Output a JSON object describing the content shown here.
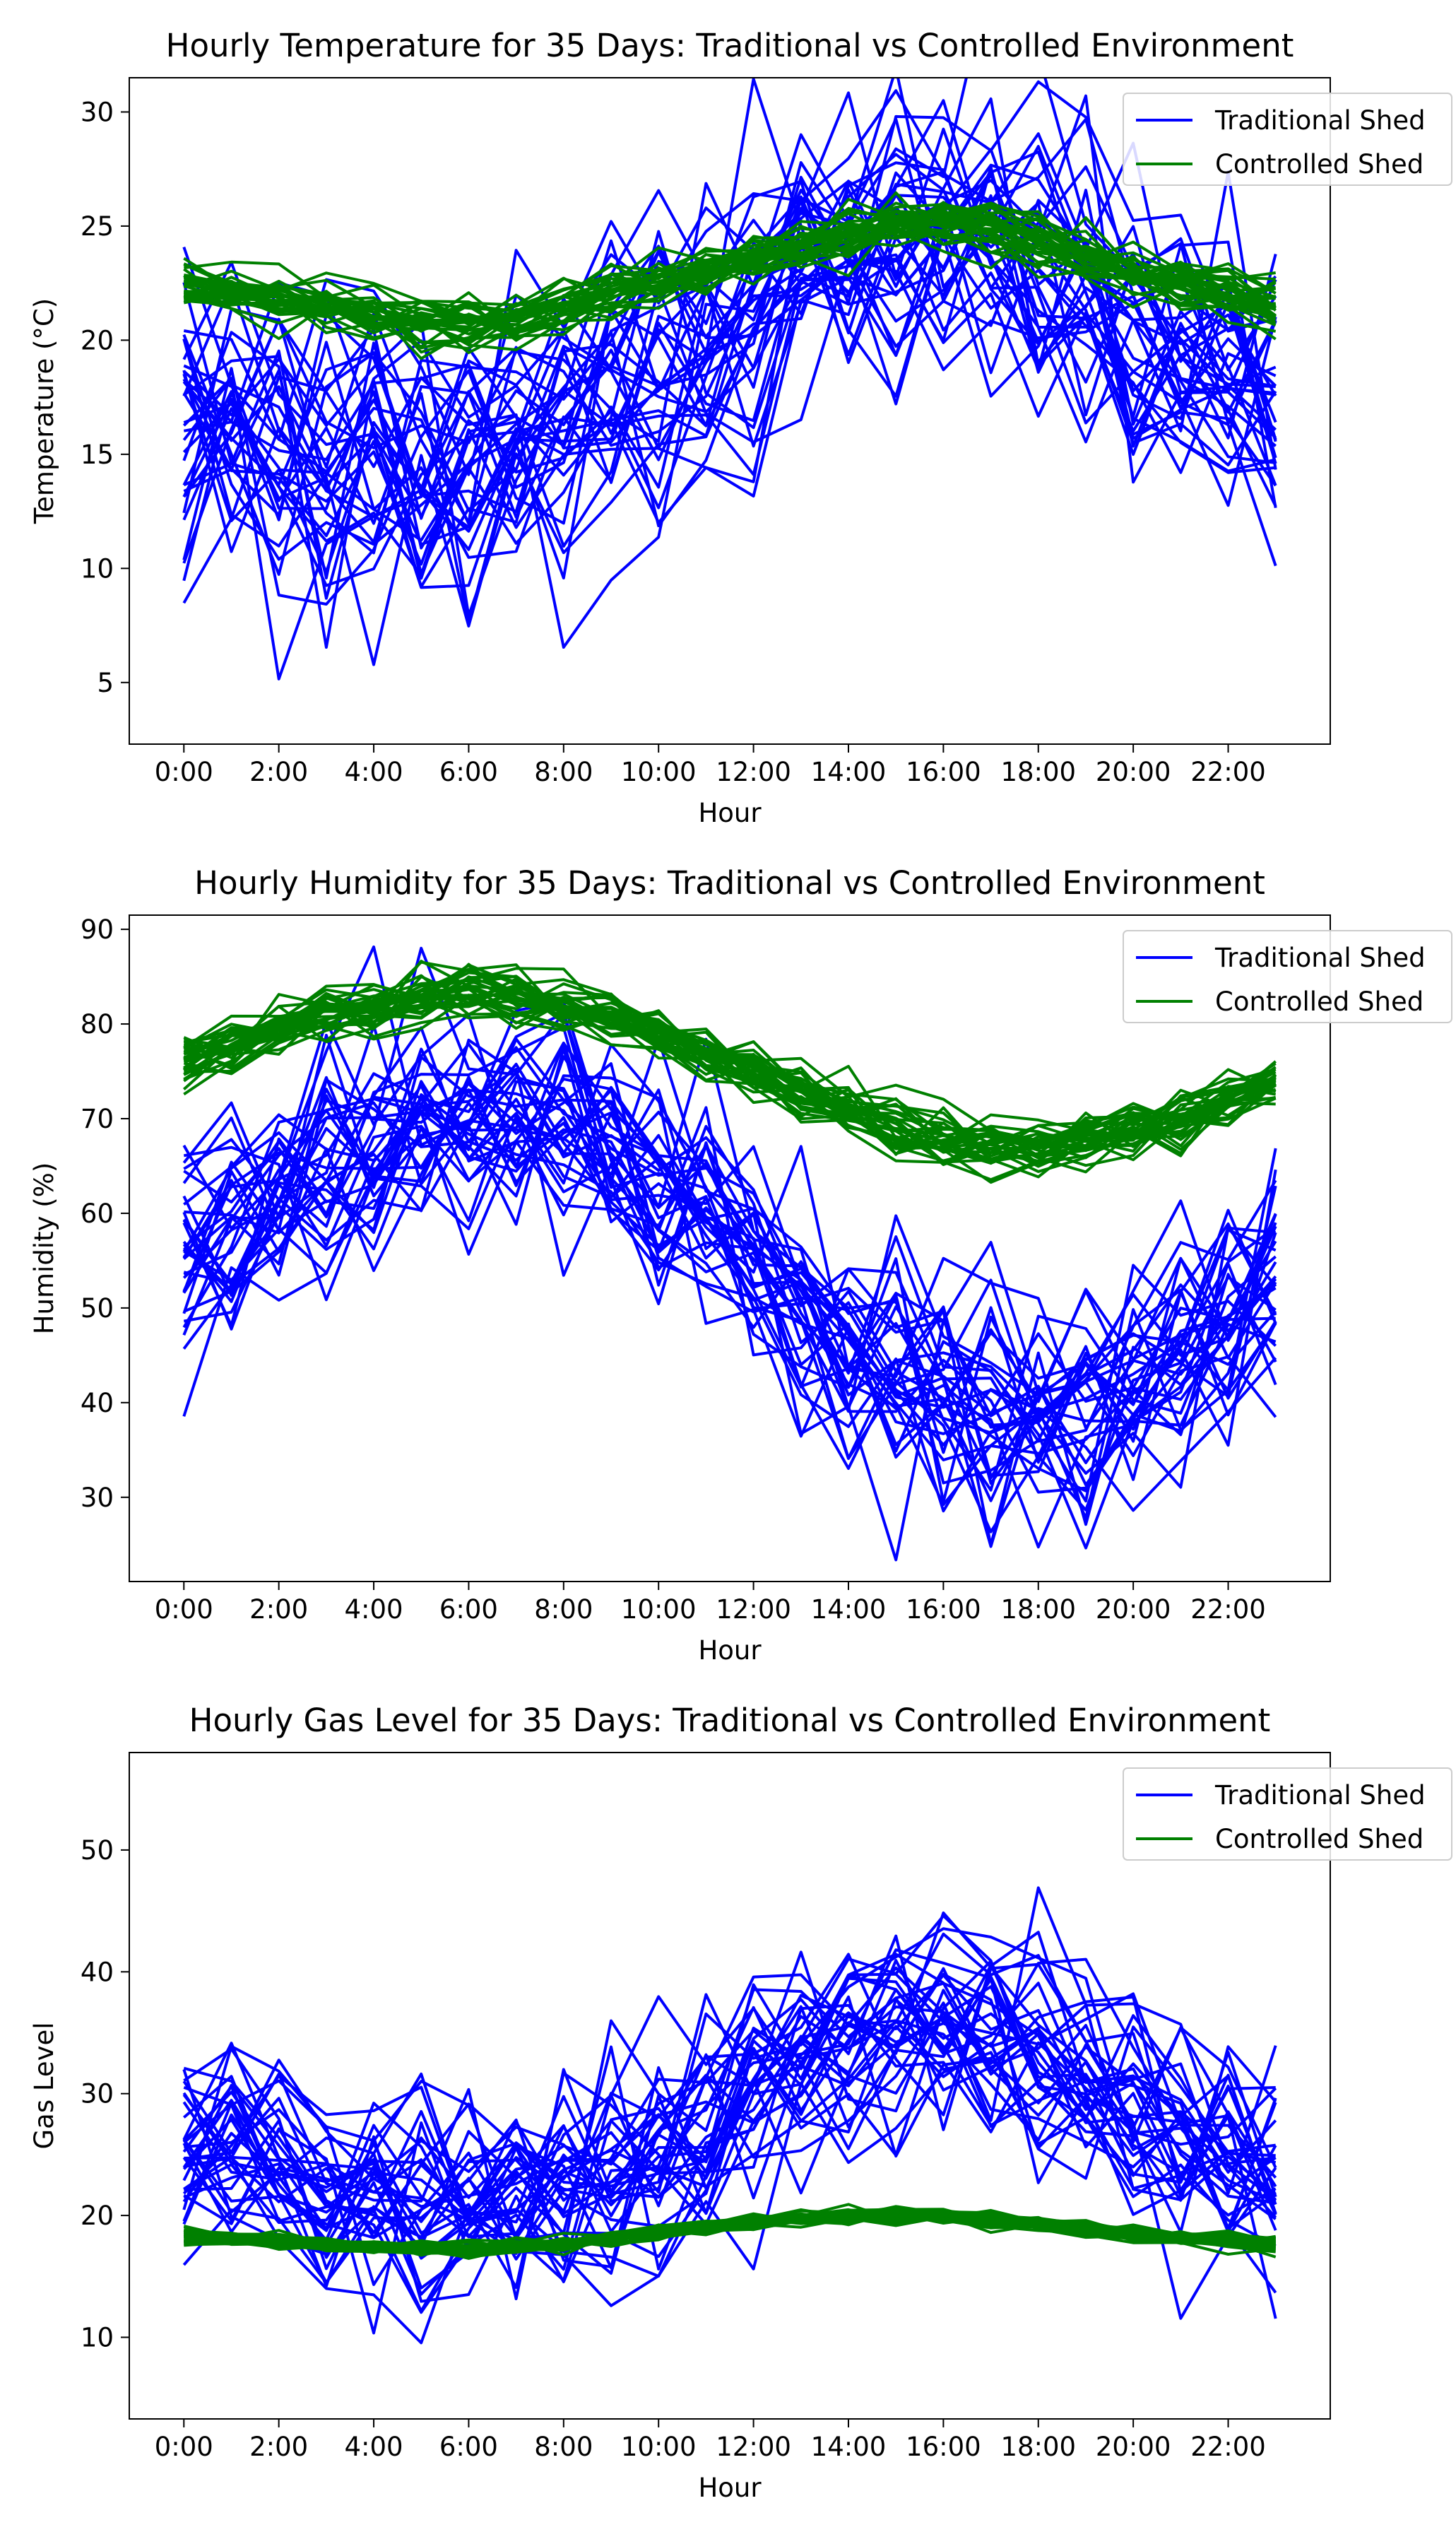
{
  "colors": {
    "traditional": "#0000ff",
    "controlled": "#008000"
  },
  "chart_data": [
    {
      "type": "line",
      "title": "Hourly Temperature for 35 Days: Traditional vs Controlled Environment",
      "xlabel": "Hour",
      "ylabel": "Temperature (°C)",
      "xlim": [
        -1.15,
        24.15
      ],
      "ylim": [
        2.3,
        31.5
      ],
      "xtick_labels": [
        "0:00",
        "2:00",
        "4:00",
        "6:00",
        "8:00",
        "10:00",
        "12:00",
        "14:00",
        "16:00",
        "18:00",
        "20:00",
        "22:00"
      ],
      "yticks": [
        5,
        10,
        15,
        20,
        25,
        30
      ],
      "legend": {
        "placement": "top-right",
        "entries": [
          "Traditional Shed",
          "Controlled Shed"
        ]
      },
      "x": [
        0,
        1,
        2,
        3,
        4,
        5,
        6,
        7,
        8,
        9,
        10,
        11,
        12,
        13,
        14,
        15,
        16,
        17,
        18,
        19,
        20,
        21,
        22,
        23
      ],
      "days": 35,
      "series": [
        {
          "name": "Traditional Shed",
          "color": "#0000ff",
          "mean": [
            16.2,
            15.8,
            15.4,
            15.0,
            14.7,
            14.6,
            14.8,
            15.3,
            16.2,
            17.4,
            18.8,
            20.3,
            21.8,
            23.0,
            23.9,
            24.4,
            24.5,
            24.0,
            23.1,
            21.8,
            20.2,
            18.6,
            17.3,
            16.5
          ],
          "spread": 3.6
        },
        {
          "name": "Controlled Shed",
          "color": "#008000",
          "mean": [
            22.5,
            22.3,
            22.0,
            21.6,
            21.2,
            20.9,
            20.8,
            21.0,
            21.5,
            22.0,
            22.6,
            23.1,
            23.6,
            24.1,
            24.7,
            25.1,
            25.3,
            25.0,
            24.4,
            23.8,
            23.1,
            22.5,
            22.0,
            21.7
          ],
          "spread": 0.6
        }
      ]
    },
    {
      "type": "line",
      "title": "Hourly Humidity for 35 Days: Traditional vs Controlled Environment",
      "xlabel": "Hour",
      "ylabel": "Humidity (%)",
      "xlim": [
        -1.15,
        24.15
      ],
      "ylim": [
        21.1,
        91.5
      ],
      "xtick_labels": [
        "0:00",
        "2:00",
        "4:00",
        "6:00",
        "8:00",
        "10:00",
        "12:00",
        "14:00",
        "16:00",
        "18:00",
        "20:00",
        "22:00"
      ],
      "yticks": [
        30,
        40,
        50,
        60,
        70,
        80,
        90
      ],
      "legend": {
        "placement": "top-right",
        "entries": [
          "Traditional Shed",
          "Controlled Shed"
        ]
      },
      "x": [
        0,
        1,
        2,
        3,
        4,
        5,
        6,
        7,
        8,
        9,
        10,
        11,
        12,
        13,
        14,
        15,
        16,
        17,
        18,
        19,
        20,
        21,
        22,
        23
      ],
      "days": 35,
      "series": [
        {
          "name": "Traditional Shed",
          "color": "#0000ff",
          "mean": [
            56,
            57,
            62,
            66,
            68,
            70,
            71,
            71,
            70,
            67,
            63,
            59,
            55,
            50,
            46,
            43,
            41,
            40,
            39,
            40,
            42,
            45,
            49,
            52
          ],
          "spread": 7
        },
        {
          "name": "Controlled Shed",
          "color": "#008000",
          "mean": [
            76,
            78,
            80,
            81,
            82,
            83,
            84,
            83,
            82,
            81,
            79,
            77,
            75,
            73,
            71,
            69,
            68,
            67,
            67,
            68,
            69,
            70,
            72,
            74
          ],
          "spread": 1.6
        }
      ]
    },
    {
      "type": "line",
      "title": "Hourly Gas Level for 35 Days: Traditional vs Controlled Environment",
      "xlabel": "Hour",
      "ylabel": "Gas Level",
      "xlim": [
        -1.15,
        24.15
      ],
      "ylim": [
        3.3,
        58.0
      ],
      "xtick_labels": [
        "0:00",
        "2:00",
        "4:00",
        "6:00",
        "8:00",
        "10:00",
        "12:00",
        "14:00",
        "16:00",
        "18:00",
        "20:00",
        "22:00"
      ],
      "yticks": [
        10,
        20,
        30,
        40,
        50
      ],
      "legend": {
        "placement": "top-right",
        "entries": [
          "Traditional Shed",
          "Controlled Shed"
        ]
      },
      "x": [
        0,
        1,
        2,
        3,
        4,
        5,
        6,
        7,
        8,
        9,
        10,
        11,
        12,
        13,
        14,
        15,
        16,
        17,
        18,
        19,
        20,
        21,
        22,
        23
      ],
      "days": 35,
      "series": [
        {
          "name": "Traditional Shed",
          "color": "#0000ff",
          "mean": [
            26,
            25,
            24,
            22,
            21,
            21,
            21,
            21,
            22,
            23,
            25,
            28,
            30,
            32,
            34,
            35,
            35,
            34,
            33,
            31,
            29,
            27,
            24,
            22
          ],
          "spread": 5
        },
        {
          "name": "Controlled Shed",
          "color": "#008000",
          "mean": [
            18.3,
            18.1,
            17.8,
            17.5,
            17.3,
            17.2,
            17.2,
            17.4,
            17.7,
            18.1,
            18.6,
            19.0,
            19.4,
            19.7,
            19.9,
            20.0,
            19.9,
            19.7,
            19.3,
            18.9,
            18.5,
            18.1,
            17.9,
            17.7
          ],
          "spread": 0.35
        }
      ]
    }
  ]
}
